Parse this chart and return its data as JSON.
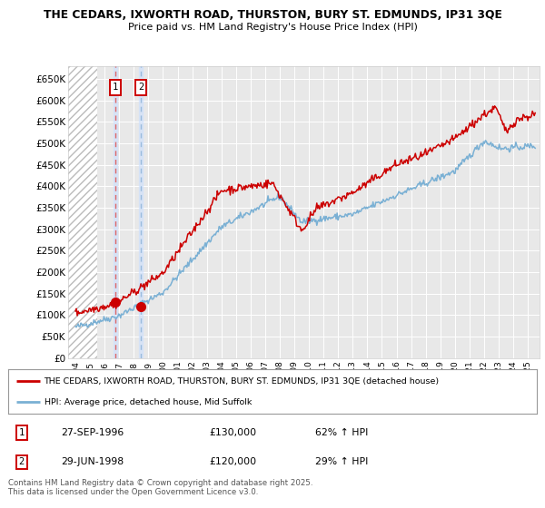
{
  "title_line1": "THE CEDARS, IXWORTH ROAD, THURSTON, BURY ST. EDMUNDS, IP31 3QE",
  "title_line2": "Price paid vs. HM Land Registry's House Price Index (HPI)",
  "ylim": [
    0,
    680000
  ],
  "yticks": [
    0,
    50000,
    100000,
    150000,
    200000,
    250000,
    300000,
    350000,
    400000,
    450000,
    500000,
    550000,
    600000,
    650000
  ],
  "ytick_labels": [
    "£0",
    "£50K",
    "£100K",
    "£150K",
    "£200K",
    "£250K",
    "£300K",
    "£350K",
    "£400K",
    "£450K",
    "£500K",
    "£550K",
    "£600K",
    "£650K"
  ],
  "xlim_start": 1993.5,
  "xlim_end": 2025.8,
  "bg_color": "#ffffff",
  "plot_bg_color": "#e8e8e8",
  "grid_color": "#ffffff",
  "hatch_end": 1995.5,
  "sale1_x": 1996.74,
  "sale1_y": 130000,
  "sale1_label": "1",
  "sale1_date": "27-SEP-1996",
  "sale1_price": "£130,000",
  "sale1_hpi": "62% ↑ HPI",
  "sale2_x": 1998.49,
  "sale2_y": 120000,
  "sale2_label": "2",
  "sale2_date": "29-JUN-1998",
  "sale2_price": "£120,000",
  "sale2_hpi": "29% ↑ HPI",
  "legend_red_label": "THE CEDARS, IXWORTH ROAD, THURSTON, BURY ST. EDMUNDS, IP31 3QE (detached house)",
  "legend_blue_label": "HPI: Average price, detached house, Mid Suffolk",
  "footnote": "Contains HM Land Registry data © Crown copyright and database right 2025.\nThis data is licensed under the Open Government Licence v3.0.",
  "red_color": "#cc0000",
  "blue_color": "#7ab0d4",
  "vline1_color": "#dd6666",
  "vline2_color": "#99bbdd"
}
